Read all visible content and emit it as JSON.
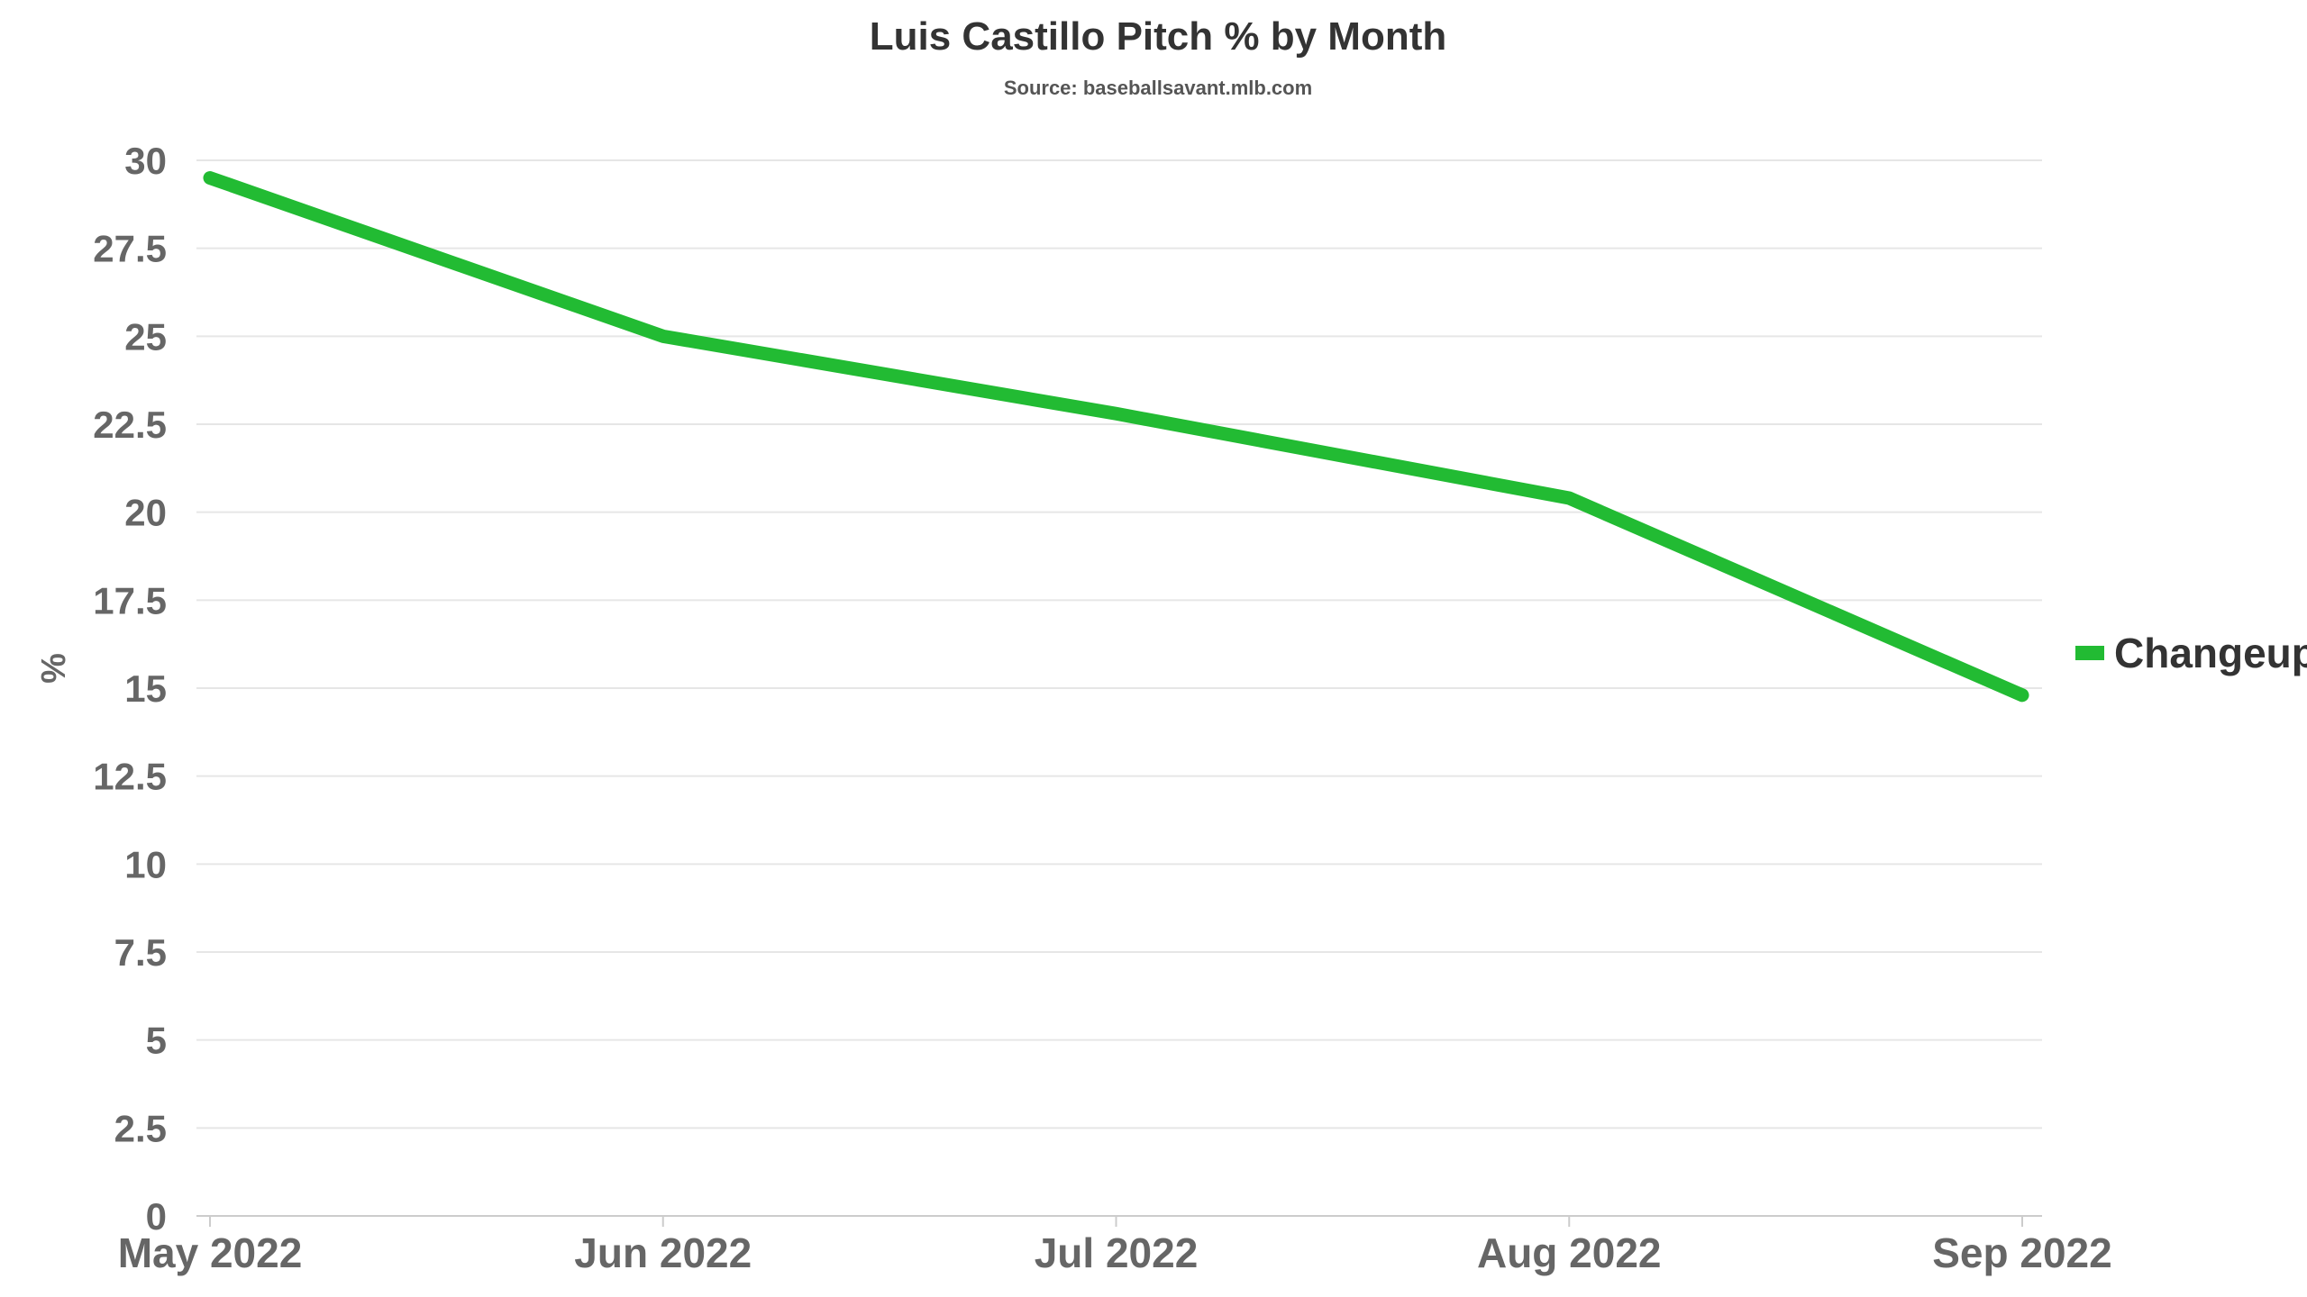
{
  "chart_data": {
    "type": "line",
    "title": "Luis Castillo Pitch % by Month",
    "subtitle": "Source: baseballsavant.mlb.com",
    "xlabel": "",
    "ylabel": "%",
    "categories": [
      "May 2022",
      "Jun 2022",
      "Jul 2022",
      "Aug 2022",
      "Sep 2022"
    ],
    "series": [
      {
        "name": "Changeup",
        "color": "#22bb33",
        "values": [
          29.5,
          25.0,
          22.8,
          20.4,
          14.8
        ]
      }
    ],
    "ylim": [
      0,
      30
    ],
    "yticks": [
      "0",
      "2.5",
      "5",
      "7.5",
      "10",
      "12.5",
      "15",
      "17.5",
      "20",
      "22.5",
      "25",
      "27.5",
      "30"
    ],
    "grid": true,
    "legend": "right"
  }
}
